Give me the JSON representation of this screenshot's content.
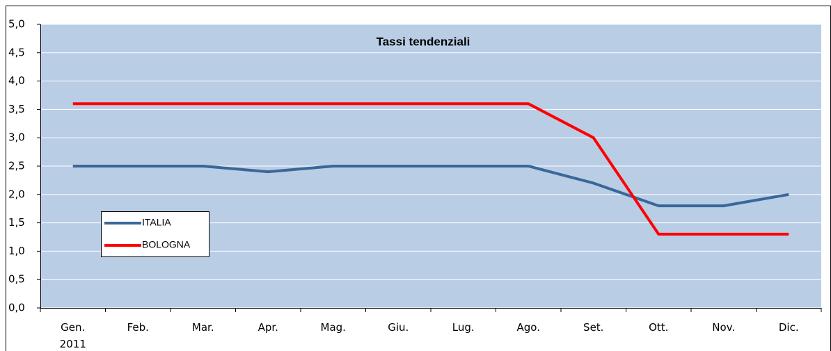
{
  "chart_data": {
    "type": "line",
    "title": "Tassi tendenziali",
    "categories": [
      "Gen.\n2011",
      "Feb.",
      "Mar.",
      "Apr.",
      "Mag.",
      "Giu.",
      "Lug.",
      "Ago.",
      "Set.",
      "Ott.",
      "Nov.",
      "Dic."
    ],
    "series": [
      {
        "name": "ITALIA",
        "color": "#3a6799",
        "values": [
          2.5,
          2.5,
          2.5,
          2.4,
          2.5,
          2.5,
          2.5,
          2.5,
          2.2,
          1.8,
          1.8,
          2.0
        ]
      },
      {
        "name": "BOLOGNA",
        "color": "#ff0000",
        "values": [
          3.6,
          3.6,
          3.6,
          3.6,
          3.6,
          3.6,
          3.6,
          3.6,
          3.0,
          1.3,
          1.3,
          1.3
        ]
      }
    ],
    "ylim": [
      0,
      5
    ],
    "yticks": [
      {
        "value": 0,
        "label": "0,0"
      },
      {
        "value": 0.5,
        "label": "0,5"
      },
      {
        "value": 1,
        "label": "1,0"
      },
      {
        "value": 1.5,
        "label": "1,5"
      },
      {
        "value": 2,
        "label": "2,0"
      },
      {
        "value": 2.5,
        "label": "2,5"
      },
      {
        "value": 3,
        "label": "3,0"
      },
      {
        "value": 3.5,
        "label": "3,5"
      },
      {
        "value": 4,
        "label": "4,0"
      },
      {
        "value": 4.5,
        "label": "4,5"
      },
      {
        "value": 5,
        "label": "5,0"
      }
    ],
    "grid": true,
    "background": "#b9cde5"
  }
}
